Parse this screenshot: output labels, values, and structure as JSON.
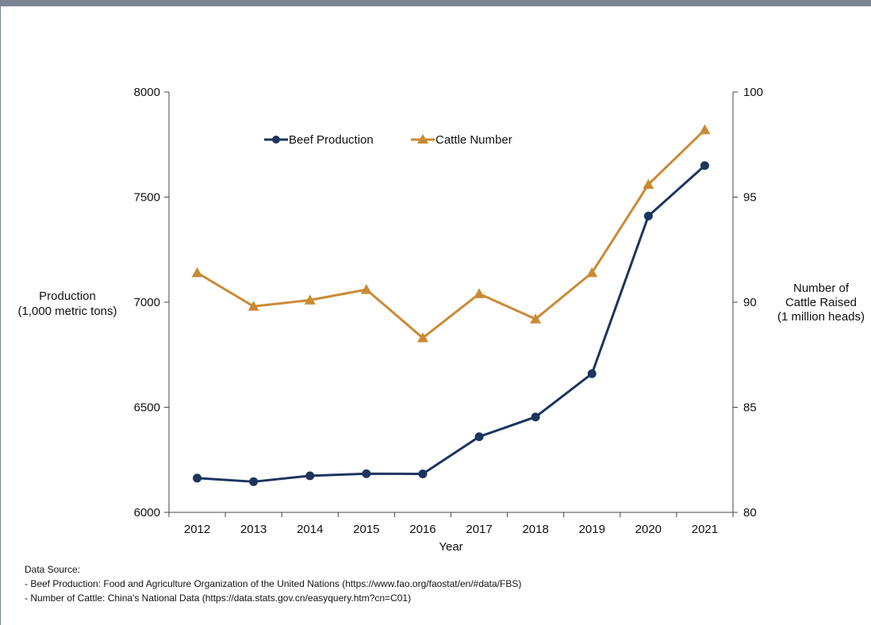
{
  "chart_data": {
    "type": "line",
    "title": "",
    "xlabel": "Year",
    "ylabel_left": "Production\n(1,000 metric tons)",
    "ylabel_right": "Number of\nCattle Raised\n(1 million heads)",
    "categories": [
      "2012",
      "2013",
      "2014",
      "2015",
      "2016",
      "2017",
      "2018",
      "2019",
      "2020",
      "2021"
    ],
    "ylim_left": [
      6000,
      8000
    ],
    "yticks_left": [
      6000,
      6500,
      7000,
      7500,
      8000
    ],
    "ylim_right": [
      80,
      100
    ],
    "yticks_right": [
      80,
      85,
      90,
      95,
      100
    ],
    "grid": false,
    "legend_placement": "top-center",
    "series": [
      {
        "name": "Beef Production",
        "axis": "left",
        "marker": "circle",
        "color": "#1c355e",
        "values": [
          6163,
          6146,
          6174,
          6184,
          6183,
          6360,
          6454,
          6660,
          7410,
          7650
        ]
      },
      {
        "name": "Cattle Number",
        "axis": "right",
        "marker": "triangle",
        "color": "#cb8a35",
        "values": [
          91.4,
          89.8,
          90.1,
          90.6,
          88.3,
          90.4,
          89.2,
          91.4,
          95.6,
          98.2
        ]
      }
    ]
  },
  "source": {
    "heading": "Data Source:",
    "lines": [
      "- Beef Production: Food and Agriculture Organization of the United Nations (https://www.fao.org/faostat/en/#data/FBS)",
      "- Number of Cattle: China's National Data (https://data.stats.gov.cn/easyquery.htm?cn=C01)"
    ]
  }
}
